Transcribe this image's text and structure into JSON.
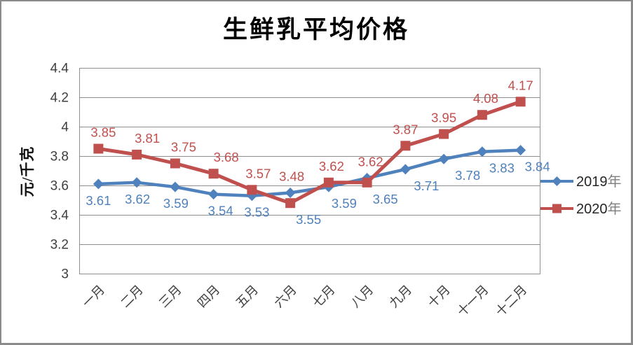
{
  "chart_data": {
    "type": "line",
    "title": "生鲜乳平均价格",
    "ylabel": "元/千克",
    "ylim": [
      3,
      4.4
    ],
    "ytick_step": 0.2,
    "ytick_labels": [
      "4.4",
      "4.2",
      "4",
      "3.8",
      "3.6",
      "3.4",
      "3.2",
      "3"
    ],
    "grid": true,
    "legend_position": "right",
    "categories": [
      "一月",
      "二月",
      "三月",
      "四月",
      "五月",
      "六月",
      "七月",
      "八月",
      "九月",
      "十月",
      "十一月",
      "十二月"
    ],
    "series": [
      {
        "name": "2019年",
        "color": "#4F81BD",
        "marker": "diamond",
        "label_position": "below",
        "values": [
          3.61,
          3.62,
          3.59,
          3.54,
          3.53,
          3.55,
          3.59,
          3.65,
          3.71,
          3.78,
          3.83,
          3.84
        ]
      },
      {
        "name": "2020年",
        "color": "#C0504D",
        "marker": "square",
        "label_position": "above",
        "values": [
          3.85,
          3.81,
          3.75,
          3.68,
          3.57,
          3.48,
          3.62,
          3.62,
          3.87,
          3.95,
          4.08,
          4.17
        ]
      }
    ]
  },
  "colors": {
    "gridline": "#8f8f8f",
    "axis_text": "#3f3f3f",
    "frame_border": "#8a8a8a",
    "legend_text": "#262626",
    "legend_cjk_text": "#7f7f7f"
  }
}
